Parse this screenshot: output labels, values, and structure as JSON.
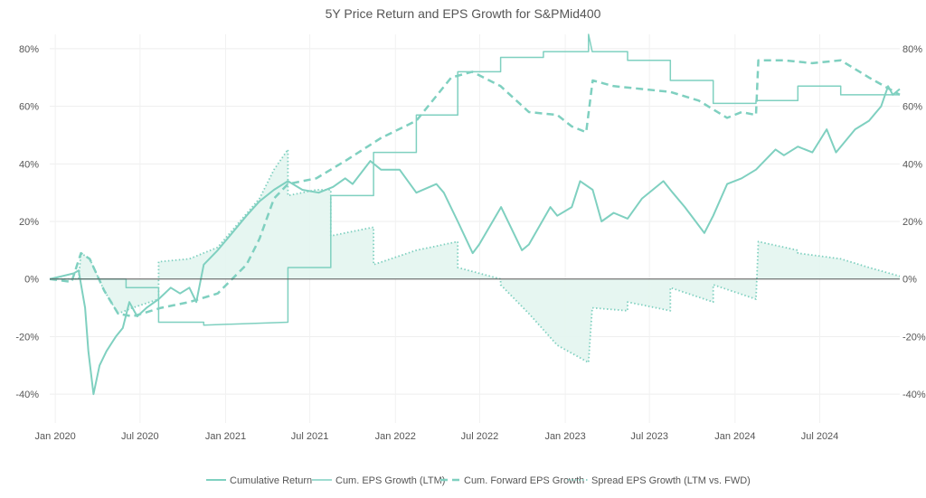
{
  "chart_data": {
    "type": "line",
    "title": "5Y Price Return and EPS Growth for S&PMid400",
    "xlabel": "",
    "ylabel": "",
    "x_range": [
      "2019-12-20",
      "2024-12-20"
    ],
    "ylim": [
      -50,
      85
    ],
    "y_ticks": [
      -40,
      -20,
      0,
      20,
      40,
      60,
      80
    ],
    "y_tick_labels": [
      "-40%",
      "-20%",
      "0%",
      "20%",
      "40%",
      "60%",
      "80%"
    ],
    "x_ticks": [
      "2020-01-01",
      "2020-07-01",
      "2021-01-01",
      "2021-07-01",
      "2022-01-01",
      "2022-07-01",
      "2023-01-01",
      "2023-07-01",
      "2024-01-01",
      "2024-07-01"
    ],
    "x_tick_labels": [
      "Jan 2020",
      "Jul 2020",
      "Jan 2021",
      "Jul 2021",
      "Jan 2022",
      "Jul 2022",
      "Jan 2023",
      "Jul 2023",
      "Jan 2024",
      "Jul 2024"
    ],
    "grid": true,
    "legend_position": "bottom-center",
    "color": "#7fd0c0",
    "fill_color": "#e3f5f0",
    "series": [
      {
        "name": "Cumulative Return",
        "style": "solid",
        "points": [
          [
            "2019-12-20",
            0
          ],
          [
            "2020-01-15",
            1
          ],
          [
            "2020-02-10",
            2
          ],
          [
            "2020-02-20",
            3
          ],
          [
            "2020-03-05",
            -10
          ],
          [
            "2020-03-12",
            -25
          ],
          [
            "2020-03-23",
            -40
          ],
          [
            "2020-04-05",
            -30
          ],
          [
            "2020-04-20",
            -25
          ],
          [
            "2020-05-10",
            -20
          ],
          [
            "2020-05-25",
            -17
          ],
          [
            "2020-06-08",
            -8
          ],
          [
            "2020-06-25",
            -13
          ],
          [
            "2020-07-15",
            -10
          ],
          [
            "2020-08-10",
            -7
          ],
          [
            "2020-09-05",
            -3
          ],
          [
            "2020-09-25",
            -5
          ],
          [
            "2020-10-15",
            -3
          ],
          [
            "2020-10-30",
            -8
          ],
          [
            "2020-11-15",
            5
          ],
          [
            "2020-12-15",
            10
          ],
          [
            "2021-01-10",
            15
          ],
          [
            "2021-02-15",
            22
          ],
          [
            "2021-03-15",
            27
          ],
          [
            "2021-04-15",
            31
          ],
          [
            "2021-05-15",
            34
          ],
          [
            "2021-06-15",
            31
          ],
          [
            "2021-07-20",
            30
          ],
          [
            "2021-08-20",
            32
          ],
          [
            "2021-09-15",
            35
          ],
          [
            "2021-10-01",
            33
          ],
          [
            "2021-11-08",
            41
          ],
          [
            "2021-12-01",
            38
          ],
          [
            "2022-01-10",
            38
          ],
          [
            "2022-02-15",
            30
          ],
          [
            "2022-03-30",
            33
          ],
          [
            "2022-04-15",
            30
          ],
          [
            "2022-05-15",
            20
          ],
          [
            "2022-06-16",
            9
          ],
          [
            "2022-06-30",
            12
          ],
          [
            "2022-08-16",
            25
          ],
          [
            "2022-09-30",
            10
          ],
          [
            "2022-10-15",
            12
          ],
          [
            "2022-11-30",
            25
          ],
          [
            "2022-12-15",
            22
          ],
          [
            "2023-01-15",
            25
          ],
          [
            "2023-02-02",
            34
          ],
          [
            "2023-03-01",
            31
          ],
          [
            "2023-03-20",
            20
          ],
          [
            "2023-04-15",
            23
          ],
          [
            "2023-05-15",
            21
          ],
          [
            "2023-06-15",
            28
          ],
          [
            "2023-07-31",
            34
          ],
          [
            "2023-08-20",
            30
          ],
          [
            "2023-09-15",
            25
          ],
          [
            "2023-10-27",
            16
          ],
          [
            "2023-11-15",
            22
          ],
          [
            "2023-12-15",
            33
          ],
          [
            "2024-01-15",
            35
          ],
          [
            "2024-02-15",
            38
          ],
          [
            "2024-03-28",
            45
          ],
          [
            "2024-04-15",
            43
          ],
          [
            "2024-05-15",
            46
          ],
          [
            "2024-06-15",
            44
          ],
          [
            "2024-07-16",
            52
          ],
          [
            "2024-08-05",
            44
          ],
          [
            "2024-09-15",
            52
          ],
          [
            "2024-10-15",
            55
          ],
          [
            "2024-11-10",
            60
          ],
          [
            "2024-11-25",
            67
          ],
          [
            "2024-12-05",
            64
          ],
          [
            "2024-12-20",
            66
          ]
        ]
      },
      {
        "name": "Cum. EPS Growth (LTM)",
        "style": "solid-thin",
        "points": [
          [
            "2019-12-20",
            0
          ],
          [
            "2020-06-01",
            0
          ],
          [
            "2020-06-01",
            -3
          ],
          [
            "2020-08-10",
            -3
          ],
          [
            "2020-08-10",
            -15
          ],
          [
            "2020-11-15",
            -15
          ],
          [
            "2020-11-15",
            -16
          ],
          [
            "2021-05-15",
            -15
          ],
          [
            "2021-05-15",
            4
          ],
          [
            "2021-08-15",
            4
          ],
          [
            "2021-08-15",
            29
          ],
          [
            "2021-11-15",
            29
          ],
          [
            "2021-11-15",
            44
          ],
          [
            "2022-02-15",
            44
          ],
          [
            "2022-02-15",
            57
          ],
          [
            "2022-05-15",
            57
          ],
          [
            "2022-05-15",
            72
          ],
          [
            "2022-08-15",
            72
          ],
          [
            "2022-08-15",
            77
          ],
          [
            "2022-11-15",
            77
          ],
          [
            "2022-11-15",
            79
          ],
          [
            "2023-02-20",
            79
          ],
          [
            "2023-02-20",
            85
          ],
          [
            "2023-02-28",
            79
          ],
          [
            "2023-05-15",
            79
          ],
          [
            "2023-05-15",
            76
          ],
          [
            "2023-08-15",
            76
          ],
          [
            "2023-08-15",
            69
          ],
          [
            "2023-11-15",
            69
          ],
          [
            "2023-11-15",
            61
          ],
          [
            "2024-02-15",
            61
          ],
          [
            "2024-02-15",
            62
          ],
          [
            "2024-05-15",
            62
          ],
          [
            "2024-05-15",
            67
          ],
          [
            "2024-08-15",
            67
          ],
          [
            "2024-08-15",
            64
          ],
          [
            "2024-12-20",
            64
          ]
        ]
      },
      {
        "name": "Cum. Forward EPS Growth",
        "style": "dashed",
        "points": [
          [
            "2019-12-20",
            0
          ],
          [
            "2020-02-05",
            -1
          ],
          [
            "2020-02-25",
            9
          ],
          [
            "2020-03-15",
            7
          ],
          [
            "2020-04-15",
            -4
          ],
          [
            "2020-05-15",
            -12
          ],
          [
            "2020-06-15",
            -13
          ],
          [
            "2020-08-15",
            -10
          ],
          [
            "2020-10-15",
            -8
          ],
          [
            "2020-12-15",
            -5
          ],
          [
            "2021-02-15",
            5
          ],
          [
            "2021-03-15",
            14
          ],
          [
            "2021-04-15",
            28
          ],
          [
            "2021-05-15",
            33
          ],
          [
            "2021-07-15",
            35
          ],
          [
            "2021-09-15",
            41
          ],
          [
            "2021-12-01",
            49
          ],
          [
            "2022-02-15",
            55
          ],
          [
            "2022-05-01",
            70
          ],
          [
            "2022-06-15",
            72
          ],
          [
            "2022-08-15",
            67
          ],
          [
            "2022-10-15",
            58
          ],
          [
            "2022-12-15",
            57
          ],
          [
            "2023-01-15",
            53
          ],
          [
            "2023-02-15",
            51
          ],
          [
            "2023-03-01",
            69
          ],
          [
            "2023-04-15",
            67
          ],
          [
            "2023-06-15",
            66
          ],
          [
            "2023-08-15",
            65
          ],
          [
            "2023-10-15",
            62
          ],
          [
            "2023-12-15",
            56
          ],
          [
            "2024-01-15",
            58
          ],
          [
            "2024-02-15",
            57
          ],
          [
            "2024-02-20",
            76
          ],
          [
            "2024-04-15",
            76
          ],
          [
            "2024-06-15",
            75
          ],
          [
            "2024-08-15",
            76
          ],
          [
            "2024-10-15",
            70
          ],
          [
            "2024-12-20",
            64
          ]
        ]
      },
      {
        "name": "Spread EPS Growth (LTM vs. FWD)",
        "style": "dotted",
        "fill": true,
        "points": [
          [
            "2019-12-20",
            0
          ],
          [
            "2020-02-20",
            0
          ],
          [
            "2020-02-25",
            9
          ],
          [
            "2020-03-15",
            7
          ],
          [
            "2020-04-15",
            -4
          ],
          [
            "2020-05-15",
            -12
          ],
          [
            "2020-06-15",
            -10
          ],
          [
            "2020-08-10",
            -7
          ],
          [
            "2020-08-10",
            6
          ],
          [
            "2020-10-15",
            7
          ],
          [
            "2020-12-15",
            11
          ],
          [
            "2021-03-15",
            28
          ],
          [
            "2021-04-15",
            38
          ],
          [
            "2021-05-15",
            45
          ],
          [
            "2021-05-15",
            29
          ],
          [
            "2021-07-15",
            31
          ],
          [
            "2021-08-15",
            31
          ],
          [
            "2021-08-15",
            15
          ],
          [
            "2021-10-15",
            17
          ],
          [
            "2021-11-15",
            18
          ],
          [
            "2021-11-15",
            5
          ],
          [
            "2022-02-15",
            10
          ],
          [
            "2022-05-15",
            13
          ],
          [
            "2022-05-15",
            4
          ],
          [
            "2022-08-15",
            0
          ],
          [
            "2022-08-15",
            -2
          ],
          [
            "2022-10-15",
            -12
          ],
          [
            "2022-12-15",
            -23
          ],
          [
            "2023-02-20",
            -29
          ],
          [
            "2023-02-28",
            -10
          ],
          [
            "2023-05-15",
            -11
          ],
          [
            "2023-05-15",
            -8
          ],
          [
            "2023-08-15",
            -11
          ],
          [
            "2023-08-15",
            -3
          ],
          [
            "2023-11-15",
            -8
          ],
          [
            "2023-11-15",
            -2
          ],
          [
            "2024-02-15",
            -7
          ],
          [
            "2024-02-20",
            13
          ],
          [
            "2024-05-15",
            10
          ],
          [
            "2024-05-15",
            9
          ],
          [
            "2024-08-15",
            7
          ],
          [
            "2024-10-15",
            4
          ],
          [
            "2024-12-20",
            1
          ]
        ]
      }
    ]
  }
}
